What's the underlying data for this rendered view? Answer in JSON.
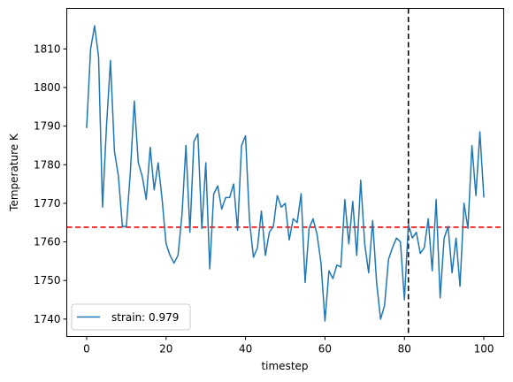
{
  "chart_data": {
    "type": "line",
    "xlabel": "timestep",
    "ylabel": "Temperature K",
    "xlim": [
      -5,
      105
    ],
    "ylim": [
      1735.5,
      1820.5
    ],
    "x_ticks": [
      0,
      20,
      40,
      60,
      80,
      100
    ],
    "y_ticks": [
      1740,
      1750,
      1760,
      1770,
      1780,
      1790,
      1800,
      1810
    ],
    "grid": false,
    "legend_position": "lower-left",
    "series": [
      {
        "name": "strain: 0.979",
        "color": "#1f77b4",
        "x": [
          0,
          1,
          2,
          3,
          4,
          5,
          6,
          7,
          8,
          9,
          10,
          11,
          12,
          13,
          14,
          15,
          16,
          17,
          18,
          19,
          20,
          21,
          22,
          23,
          24,
          25,
          26,
          27,
          28,
          29,
          30,
          31,
          32,
          33,
          34,
          35,
          36,
          37,
          38,
          39,
          40,
          41,
          42,
          43,
          44,
          45,
          46,
          47,
          48,
          49,
          50,
          51,
          52,
          53,
          54,
          55,
          56,
          57,
          58,
          59,
          60,
          61,
          62,
          63,
          64,
          65,
          66,
          67,
          68,
          69,
          70,
          71,
          72,
          73,
          74,
          75,
          76,
          77,
          78,
          79,
          80,
          81,
          82,
          83,
          84,
          85,
          86,
          87,
          88,
          89,
          90,
          91,
          92,
          93,
          94,
          95,
          96,
          97,
          98,
          99,
          100
        ],
        "y": [
          1789.5,
          1810.0,
          1816.0,
          1808.0,
          1769.0,
          1790.0,
          1807.0,
          1783.5,
          1777.0,
          1764.0,
          1764.0,
          1778.0,
          1796.5,
          1780.5,
          1777.0,
          1771.0,
          1784.5,
          1773.5,
          1780.5,
          1771.0,
          1759.5,
          1756.5,
          1754.5,
          1756.5,
          1767.0,
          1785.0,
          1762.5,
          1786.0,
          1788.0,
          1763.5,
          1780.5,
          1753.0,
          1772.5,
          1774.5,
          1768.5,
          1771.5,
          1771.5,
          1775.0,
          1763.0,
          1785.0,
          1787.5,
          1765.5,
          1756.0,
          1758.5,
          1768.0,
          1756.5,
          1762.5,
          1764.0,
          1772.0,
          1769.0,
          1770.0,
          1760.5,
          1766.0,
          1765.0,
          1772.5,
          1749.5,
          1763.5,
          1766.0,
          1762.0,
          1754.5,
          1739.5,
          1752.5,
          1750.5,
          1754.0,
          1753.5,
          1771.0,
          1759.5,
          1770.5,
          1756.5,
          1776.0,
          1759.5,
          1752.0,
          1765.5,
          1749.5,
          1740.0,
          1743.5,
          1755.5,
          1758.5,
          1761.0,
          1760.0,
          1745.0,
          1764.5,
          1761.0,
          1762.5,
          1757.0,
          1758.5,
          1766.0,
          1752.5,
          1771.0,
          1745.5,
          1761.0,
          1764.0,
          1752.0,
          1761.0,
          1748.5,
          1770.0,
          1763.5,
          1785.0,
          1772.0,
          1788.5,
          1771.5
        ]
      }
    ],
    "reference_lines": [
      {
        "orientation": "horizontal",
        "value": 1763.8,
        "color": "#ff0000",
        "style": "dashed"
      },
      {
        "orientation": "vertical",
        "value": 81,
        "color": "#000000",
        "style": "dashed"
      }
    ]
  }
}
